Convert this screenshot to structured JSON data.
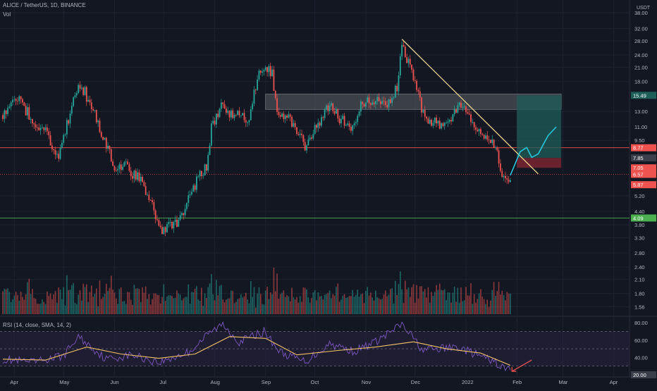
{
  "header": {
    "symbol_line": "ALICE / TetherUS, 1D, BINANCE",
    "volume_label": "Vol",
    "currency": "USDT"
  },
  "rsi_panel": {
    "label": "RSI (14, close, SMA, 14, 2)",
    "ticks": [
      "80.00",
      "60.00",
      "40.00",
      "20.00"
    ],
    "current_value_label": "20.00"
  },
  "colors": {
    "background": "#131722",
    "grid": "#1f2330",
    "up_candle": "#26a69a",
    "down_candle": "#ef5350",
    "trendline": "#e6cf8c",
    "resistance_box": "#6b7078",
    "resistance_line": "#ef5350",
    "support_line": "#4caf50",
    "target_zone": "#1f5f59",
    "stop_zone": "#7a2630",
    "projection": "#26c6da",
    "rsi_line": "#7e57c2",
    "rsi_ma": "#f2c266",
    "rsi_band": "#2a2340",
    "arrow": "#ef5350"
  },
  "chart_data": {
    "type": "candlestick",
    "title": "ALICE / TetherUS, 1D, BINANCE",
    "y_scale": "log",
    "ylim": [
      1.45,
      38.0
    ],
    "price_ticks": [
      "38.00",
      "32.00",
      "28.00",
      "24.00",
      "21.00",
      "18.00",
      "13.00",
      "11.00",
      "9.50",
      "5.20",
      "4.40",
      "3.80",
      "3.30",
      "2.80",
      "2.40",
      "2.10",
      "1.80",
      "1.56"
    ],
    "x_ticks": [
      "Apr",
      "May",
      "Jun",
      "Jul",
      "Aug",
      "Sep",
      "Oct",
      "Nov",
      "Dec",
      "2022",
      "Feb",
      "Mar",
      "Apr"
    ],
    "price_labels": [
      {
        "text": "15.49",
        "value": 15.49,
        "color": "#1f5f59"
      },
      {
        "text": "8.77",
        "value": 8.77,
        "color": "#ef5350"
      },
      {
        "text": "7.85",
        "value": 7.85,
        "color": "#3a3f4b"
      },
      {
        "text": "7.05",
        "value": 7.05,
        "color": "#ef5350"
      },
      {
        "text": "6.57",
        "value": 6.57,
        "color": "#ef5350"
      },
      {
        "text": "5.87",
        "value": 5.87,
        "color": "#ef5350"
      },
      {
        "text": "4.09",
        "value": 4.09,
        "color": "#4caf50"
      }
    ],
    "price_path": [
      [
        "2021-03-25",
        12.5
      ],
      [
        "2021-04-03",
        15.0
      ],
      [
        "2021-04-12",
        12.0
      ],
      [
        "2021-04-20",
        10.5
      ],
      [
        "2021-04-28",
        8.0
      ],
      [
        "2021-05-02",
        10.5
      ],
      [
        "2021-05-10",
        17.5
      ],
      [
        "2021-05-14",
        16.0
      ],
      [
        "2021-05-21",
        12.0
      ],
      [
        "2021-05-27",
        9.0
      ],
      [
        "2021-06-01",
        7.0
      ],
      [
        "2021-06-07",
        7.5
      ],
      [
        "2021-06-12",
        6.6
      ],
      [
        "2021-06-18",
        6.1
      ],
      [
        "2021-06-24",
        4.6
      ],
      [
        "2021-06-28",
        3.6
      ],
      [
        "2021-07-03",
        3.7
      ],
      [
        "2021-07-10",
        4.0
      ],
      [
        "2021-07-16",
        5.0
      ],
      [
        "2021-07-22",
        6.4
      ],
      [
        "2021-07-27",
        7.2
      ],
      [
        "2021-07-30",
        11.0
      ],
      [
        "2021-08-06",
        14.0
      ],
      [
        "2021-08-10",
        12.5
      ],
      [
        "2021-08-16",
        12.5
      ],
      [
        "2021-08-22",
        12.0
      ],
      [
        "2021-08-27",
        18.5
      ],
      [
        "2021-08-31",
        21.5
      ],
      [
        "2021-09-05",
        19.5
      ],
      [
        "2021-09-08",
        12.5
      ],
      [
        "2021-09-15",
        12.5
      ],
      [
        "2021-09-25",
        9.0
      ],
      [
        "2021-10-02",
        11.0
      ],
      [
        "2021-10-10",
        14.0
      ],
      [
        "2021-10-16",
        12.0
      ],
      [
        "2021-10-25",
        11.0
      ],
      [
        "2021-10-30",
        14.5
      ],
      [
        "2021-11-07",
        15.0
      ],
      [
        "2021-11-14",
        14.0
      ],
      [
        "2021-11-20",
        17.0
      ],
      [
        "2021-11-23",
        26.0
      ],
      [
        "2021-11-27",
        22.0
      ],
      [
        "2021-12-02",
        17.0
      ],
      [
        "2021-12-06",
        12.5
      ],
      [
        "2021-12-13",
        11.5
      ],
      [
        "2021-12-20",
        11.0
      ],
      [
        "2021-12-27",
        14.0
      ],
      [
        "2022-01-03",
        12.5
      ],
      [
        "2022-01-09",
        10.5
      ],
      [
        "2022-01-15",
        10.0
      ],
      [
        "2022-01-20",
        8.5
      ],
      [
        "2022-01-22",
        6.6
      ],
      [
        "2022-01-25",
        6.1
      ],
      [
        "2022-01-28",
        6.5
      ]
    ],
    "projection_path": [
      [
        "2022-01-28",
        6.5
      ],
      [
        "2022-02-03",
        8.4
      ],
      [
        "2022-02-07",
        8.8
      ],
      [
        "2022-02-10",
        7.9
      ],
      [
        "2022-02-14",
        8.2
      ],
      [
        "2022-02-20",
        10.0
      ],
      [
        "2022-02-25",
        11.0
      ]
    ],
    "trendline": [
      [
        "2021-11-23",
        28.5
      ],
      [
        "2022-02-14",
        6.6
      ]
    ],
    "resistance_zone": {
      "x": [
        "2021-09-01",
        "2022-02-28"
      ],
      "price": [
        13.3,
        15.7
      ]
    },
    "resistance_level": 8.77,
    "breakdown_level": 6.57,
    "support_level": 4.09,
    "position": {
      "x": [
        "2022-02-01",
        "2022-02-28"
      ],
      "target": 15.49,
      "entry": 7.85,
      "stop": 7.05
    },
    "rsi": {
      "ylim": [
        20,
        85
      ],
      "levels": [
        70,
        50,
        30
      ],
      "series": [
        [
          "2021-03-25",
          38
        ],
        [
          "2021-04-12",
          34
        ],
        [
          "2021-05-01",
          42
        ],
        [
          "2021-05-10",
          64
        ],
        [
          "2021-05-27",
          38
        ],
        [
          "2021-06-12",
          43
        ],
        [
          "2021-06-28",
          34
        ],
        [
          "2021-07-16",
          46
        ],
        [
          "2021-07-30",
          70
        ],
        [
          "2021-08-06",
          78
        ],
        [
          "2021-08-16",
          58
        ],
        [
          "2021-08-31",
          70
        ],
        [
          "2021-09-10",
          46
        ],
        [
          "2021-09-25",
          35
        ],
        [
          "2021-10-10",
          56
        ],
        [
          "2021-10-25",
          47
        ],
        [
          "2021-11-07",
          58
        ],
        [
          "2021-11-23",
          78
        ],
        [
          "2021-12-06",
          48
        ],
        [
          "2021-12-27",
          52
        ],
        [
          "2022-01-09",
          42
        ],
        [
          "2022-01-20",
          33
        ],
        [
          "2022-01-25",
          26
        ],
        [
          "2022-01-28",
          28
        ]
      ],
      "ma_series": [
        [
          "2021-03-25",
          38
        ],
        [
          "2021-04-20",
          37
        ],
        [
          "2021-05-15",
          52
        ],
        [
          "2021-06-05",
          44
        ],
        [
          "2021-06-28",
          39
        ],
        [
          "2021-07-20",
          44
        ],
        [
          "2021-08-10",
          64
        ],
        [
          "2021-09-01",
          62
        ],
        [
          "2021-09-20",
          43
        ],
        [
          "2021-10-15",
          48
        ],
        [
          "2021-11-07",
          52
        ],
        [
          "2021-11-30",
          58
        ],
        [
          "2021-12-20",
          50
        ],
        [
          "2022-01-10",
          45
        ],
        [
          "2022-01-28",
          31
        ]
      ]
    }
  }
}
